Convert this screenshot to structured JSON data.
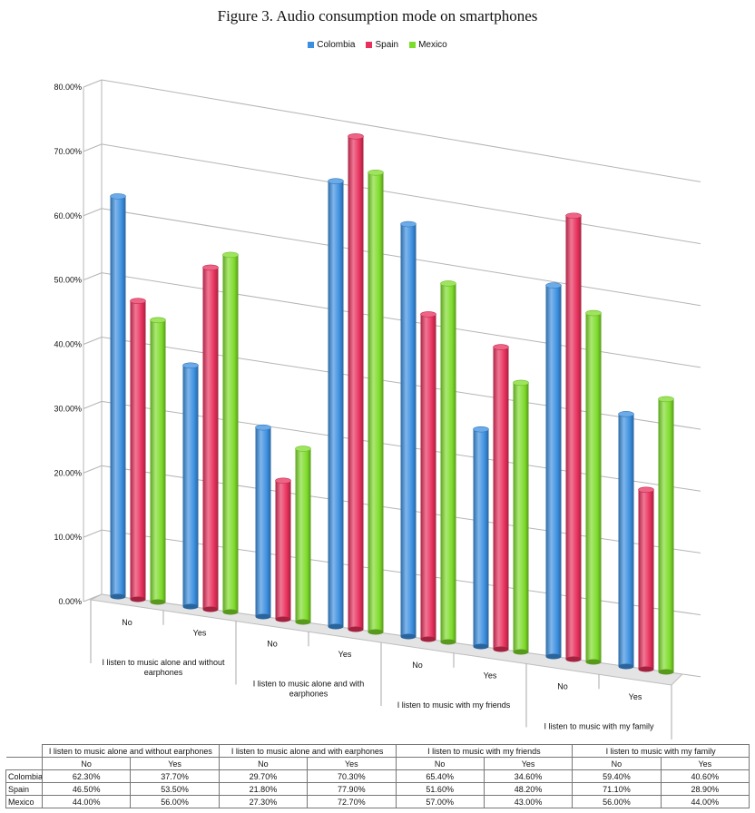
{
  "chart_data": {
    "type": "bar",
    "title": "Figure 3. Audio consumption mode on smartphones",
    "legend_position": "top",
    "ylim": [
      0,
      80
    ],
    "y_ticks": [
      "0.00%",
      "10.00%",
      "20.00%",
      "30.00%",
      "40.00%",
      "50.00%",
      "60.00%",
      "70.00%",
      "80.00%"
    ],
    "groups": [
      "I listen to music alone and without earphones",
      "I listen to music alone and with earphones",
      "I listen to music with my friends",
      "I listen to music with my family"
    ],
    "axis_group_labels": [
      [
        "I listen to music alone and without",
        "earphones"
      ],
      [
        "I listen to music alone and with",
        "earphones"
      ],
      [
        "I listen to music with my friends"
      ],
      [
        "I listen to music with my family"
      ]
    ],
    "subcategories": [
      "No",
      "Yes"
    ],
    "series": [
      {
        "name": "Colombia",
        "color": "#3b8fe0",
        "values": [
          62.3,
          37.7,
          29.7,
          70.3,
          65.4,
          34.6,
          59.4,
          40.6
        ]
      },
      {
        "name": "Spain",
        "color": "#e8305c",
        "values": [
          46.5,
          53.5,
          21.8,
          77.9,
          51.6,
          48.2,
          71.1,
          28.9
        ]
      },
      {
        "name": "Mexico",
        "color": "#7ddb2a",
        "values": [
          44.0,
          56.0,
          27.3,
          72.7,
          57.0,
          43.0,
          56.0,
          44.0
        ]
      }
    ],
    "table": {
      "rows": [
        {
          "label": "Colombia",
          "cells": [
            "62.30%",
            "37.70%",
            "29.70%",
            "70.30%",
            "65.40%",
            "34.60%",
            "59.40%",
            "40.60%"
          ]
        },
        {
          "label": "Spain",
          "cells": [
            "46.50%",
            "53.50%",
            "21.80%",
            "77.90%",
            "51.60%",
            "48.20%",
            "71.10%",
            "28.90%"
          ]
        },
        {
          "label": "Mexico",
          "cells": [
            "44.00%",
            "56.00%",
            "27.30%",
            "72.70%",
            "57.00%",
            "43.00%",
            "56.00%",
            "44.00%"
          ]
        }
      ]
    }
  }
}
